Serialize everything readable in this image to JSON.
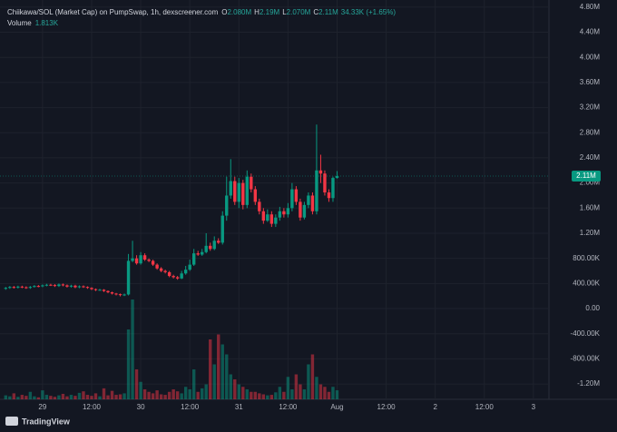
{
  "chart_data": {
    "type": "candlestick",
    "title": "Chiikawa/SOL (Market Cap) on PumpSwap, 1h, dexscreener.com",
    "header": {
      "open_label": "O",
      "open": "2.080M",
      "high_label": "H",
      "high": "2.19M",
      "low_label": "L",
      "low": "2.070M",
      "close_label": "C",
      "close": "2.11M",
      "change": "34.33K (+1.65%)",
      "volume_label": "Volume",
      "volume": "1.813K"
    },
    "branding": "TradingView",
    "up_color": "#089981",
    "down_color": "#f23645",
    "grid": true,
    "last_price": {
      "value": 2110000,
      "label": "2.11M"
    },
    "xlim": [
      -10.4,
      123.8
    ],
    "xticks": [
      {
        "value": 0,
        "label": "29"
      },
      {
        "value": 12,
        "label": "12:00"
      },
      {
        "value": 24,
        "label": "30"
      },
      {
        "value": 36,
        "label": "12:00"
      },
      {
        "value": 48,
        "label": "31"
      },
      {
        "value": 60,
        "label": "12:00"
      },
      {
        "value": 72,
        "label": "Aug"
      },
      {
        "value": 84,
        "label": "12:00"
      },
      {
        "value": 96,
        "label": "2"
      },
      {
        "value": 108,
        "label": "12:00"
      },
      {
        "value": 120,
        "label": "3"
      }
    ],
    "ylim": [
      -1444000,
      4913000
    ],
    "yticks": [
      {
        "value": 4800000,
        "label": "4.80M"
      },
      {
        "value": 4400000,
        "label": "4.40M"
      },
      {
        "value": 4000000,
        "label": "4.00M"
      },
      {
        "value": 3600000,
        "label": "3.60M"
      },
      {
        "value": 3200000,
        "label": "3.20M"
      },
      {
        "value": 2800000,
        "label": "2.80M"
      },
      {
        "value": 2400000,
        "label": "2.40M"
      },
      {
        "value": 2000000,
        "label": "2.00M"
      },
      {
        "value": 1600000,
        "label": "1.60M"
      },
      {
        "value": 1200000,
        "label": "1.20M"
      },
      {
        "value": 800000,
        "label": "800.00K"
      },
      {
        "value": 400000,
        "label": "400.00K"
      },
      {
        "value": 0,
        "label": "0.00"
      },
      {
        "value": -400000,
        "label": "-400.00K"
      },
      {
        "value": -800000,
        "label": "-800.00K"
      },
      {
        "value": -1200000,
        "label": "-1.20M"
      }
    ],
    "x": [
      -9,
      -8,
      -7,
      -6,
      -5,
      -4,
      -3,
      -2,
      -1,
      0,
      1,
      2,
      3,
      4,
      5,
      6,
      7,
      8,
      9,
      10,
      11,
      12,
      13,
      14,
      15,
      16,
      17,
      18,
      19,
      20,
      21,
      22,
      23,
      24,
      25,
      26,
      27,
      28,
      29,
      30,
      31,
      32,
      33,
      34,
      35,
      36,
      37,
      38,
      39,
      40,
      41,
      42,
      43,
      44,
      45,
      46,
      47,
      48,
      49,
      50,
      51,
      52,
      53,
      54,
      55,
      56,
      57,
      58,
      59,
      60,
      61,
      62,
      63,
      64,
      65,
      66,
      67,
      68,
      69,
      70,
      71,
      72
    ],
    "open": [
      320000,
      330000,
      345000,
      335000,
      350000,
      340000,
      330000,
      345000,
      360000,
      355000,
      370000,
      380000,
      375000,
      360000,
      385000,
      370000,
      350000,
      365000,
      340000,
      355000,
      345000,
      330000,
      310000,
      295000,
      300000,
      280000,
      260000,
      240000,
      230000,
      215000,
      225000,
      760000,
      800000,
      720000,
      850000,
      780000,
      760000,
      700000,
      640000,
      600000,
      580000,
      520000,
      500000,
      480000,
      560000,
      620000,
      700000,
      880000,
      860000,
      900000,
      1000000,
      950000,
      1080000,
      1050000,
      1480000,
      1800000,
      2030000,
      1700000,
      2000000,
      1650000,
      2100000,
      1900000,
      1700000,
      1550000,
      1400000,
      1500000,
      1350000,
      1450000,
      1550000,
      1500000,
      1600000,
      1900000,
      1700000,
      1450000,
      1650000,
      1800000,
      1550000,
      2200000,
      2150000,
      1850000,
      1760000,
      2080000
    ],
    "high": [
      345000,
      360000,
      360000,
      365000,
      365000,
      355000,
      360000,
      375000,
      375000,
      385000,
      395000,
      395000,
      390000,
      400000,
      400000,
      385000,
      380000,
      380000,
      370000,
      370000,
      355000,
      340000,
      320000,
      315000,
      310000,
      290000,
      270000,
      250000,
      240000,
      240000,
      870000,
      1080000,
      850000,
      900000,
      880000,
      800000,
      780000,
      720000,
      660000,
      620000,
      600000,
      540000,
      520000,
      600000,
      680000,
      780000,
      950000,
      920000,
      950000,
      1200000,
      1050000,
      1150000,
      1120000,
      1550000,
      2100000,
      2380000,
      2100000,
      2080000,
      2050000,
      2200000,
      2150000,
      1950000,
      1750000,
      1600000,
      1580000,
      1550000,
      1500000,
      1620000,
      1600000,
      1680000,
      2000000,
      1950000,
      1750000,
      1700000,
      1850000,
      1850000,
      2930000,
      2450000,
      2200000,
      1900000,
      2100000,
      2190000
    ],
    "low": [
      300000,
      315000,
      320000,
      320000,
      325000,
      315000,
      315000,
      335000,
      340000,
      340000,
      355000,
      360000,
      345000,
      345000,
      355000,
      335000,
      335000,
      325000,
      325000,
      330000,
      315000,
      295000,
      280000,
      285000,
      265000,
      245000,
      225000,
      210000,
      195000,
      200000,
      210000,
      740000,
      700000,
      700000,
      760000,
      740000,
      680000,
      620000,
      580000,
      560000,
      500000,
      480000,
      460000,
      470000,
      540000,
      600000,
      680000,
      840000,
      840000,
      880000,
      920000,
      930000,
      1030000,
      1020000,
      1400000,
      1750000,
      1650000,
      1600000,
      1580000,
      1600000,
      1850000,
      1650000,
      1500000,
      1350000,
      1380000,
      1300000,
      1300000,
      1400000,
      1450000,
      1450000,
      1550000,
      1650000,
      1400000,
      1420000,
      1600000,
      1500000,
      1500000,
      2000000,
      1800000,
      1700000,
      1700000,
      2070000
    ],
    "close": [
      330000,
      345000,
      335000,
      350000,
      340000,
      330000,
      345000,
      360000,
      355000,
      370000,
      380000,
      375000,
      360000,
      385000,
      370000,
      350000,
      365000,
      340000,
      355000,
      345000,
      330000,
      310000,
      295000,
      300000,
      280000,
      260000,
      240000,
      230000,
      215000,
      225000,
      760000,
      800000,
      720000,
      850000,
      780000,
      760000,
      700000,
      640000,
      600000,
      580000,
      520000,
      500000,
      480000,
      560000,
      620000,
      700000,
      880000,
      860000,
      900000,
      1000000,
      950000,
      1080000,
      1050000,
      1480000,
      1800000,
      2030000,
      1700000,
      2000000,
      1650000,
      2100000,
      1900000,
      1700000,
      1550000,
      1400000,
      1500000,
      1350000,
      1450000,
      1550000,
      1500000,
      1600000,
      1900000,
      1700000,
      1450000,
      1650000,
      1800000,
      1550000,
      2200000,
      2150000,
      1850000,
      1760000,
      2080000,
      2110000
    ],
    "volume": [
      800,
      600,
      1200,
      500,
      900,
      700,
      1500,
      600,
      400,
      1800,
      900,
      700,
      500,
      800,
      1100,
      600,
      900,
      700,
      1300,
      1600,
      900,
      700,
      1200,
      600,
      2200,
      800,
      1700,
      900,
      1000,
      1200,
      14000,
      20000,
      6000,
      3500,
      2000,
      1500,
      1200,
      1800,
      1000,
      900,
      1500,
      2000,
      1600,
      1200,
      2500,
      2000,
      6000,
      1500,
      2200,
      3000,
      12000,
      7000,
      13000,
      11000,
      9000,
      5000,
      4000,
      3000,
      2500,
      2000,
      1500,
      1500,
      1200,
      1000,
      800,
      900,
      1400,
      2500,
      1500,
      4500,
      2000,
      5000,
      3000,
      2000,
      7000,
      9000,
      4500,
      3000,
      2500,
      1500,
      2500,
      1813
    ]
  }
}
